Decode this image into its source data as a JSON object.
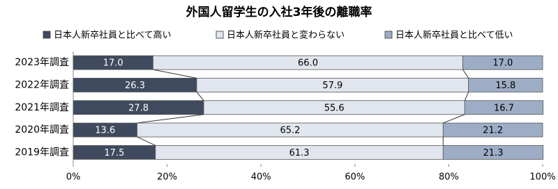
{
  "chart_data": {
    "type": "stacked-bar-horizontal",
    "title": "外国人留学生の入社3年後の離職率",
    "categories": [
      "2023年調査",
      "2022年調査",
      "2021年調査",
      "2020年調査",
      "2019年調査"
    ],
    "series": [
      {
        "name": "日本人新卒社員と比べて高い",
        "color": "#3f4a5e",
        "label_color": "#ffffff",
        "values": [
          17.0,
          26.3,
          27.8,
          13.6,
          17.5
        ],
        "value_labels": [
          "17.0",
          "26.3",
          "27.8",
          "13.6",
          "17.5"
        ]
      },
      {
        "name": "日本人新卒社員と変わらない",
        "color": "#e1e6ee",
        "label_color": "#000000",
        "values": [
          66.0,
          57.9,
          55.6,
          65.2,
          61.3
        ],
        "value_labels": [
          "66.0",
          "57.9",
          "55.6",
          "65.2",
          "61.3"
        ]
      },
      {
        "name": "日本人新卒社員と比べて低い",
        "color": "#9dadc6",
        "label_color": "#000000",
        "values": [
          17.0,
          15.8,
          16.7,
          21.2,
          21.3
        ],
        "value_labels": [
          "17.0",
          "15.8",
          "16.7",
          "21.2",
          "21.3"
        ]
      }
    ],
    "xlim": [
      0,
      100
    ],
    "xticks": [
      {
        "value": 0,
        "label": "0%"
      },
      {
        "value": 20,
        "label": "20%"
      },
      {
        "value": 40,
        "label": "40%"
      },
      {
        "value": 60,
        "label": "60%"
      },
      {
        "value": 80,
        "label": "80%"
      },
      {
        "value": 100,
        "label": "100%"
      }
    ],
    "connectors": true
  }
}
